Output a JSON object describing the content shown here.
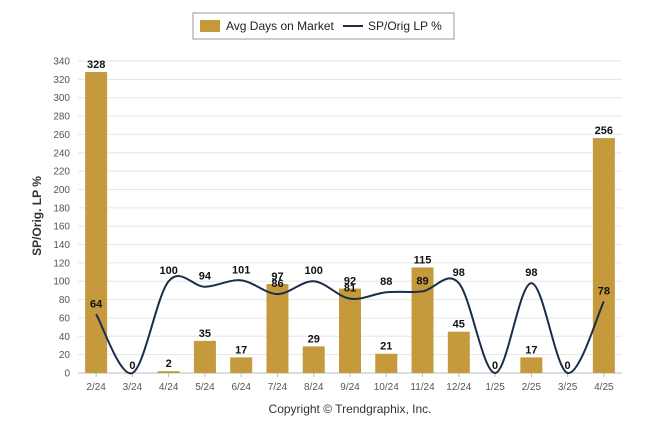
{
  "chart_data": {
    "type": "bar",
    "categories": [
      "2/24",
      "3/24",
      "4/24",
      "5/24",
      "6/24",
      "7/24",
      "8/24",
      "9/24",
      "10/24",
      "11/24",
      "12/24",
      "1/25",
      "2/25",
      "3/25",
      "4/25"
    ],
    "series": [
      {
        "name": "Avg Days on Market",
        "type": "bar",
        "values": [
          328,
          0,
          2,
          35,
          17,
          97,
          29,
          92,
          21,
          115,
          45,
          0,
          17,
          0,
          256
        ],
        "color": "#c49a3c"
      },
      {
        "name": "SP/Orig LP %",
        "type": "line",
        "values": [
          64,
          0,
          100,
          94,
          101,
          86,
          100,
          81,
          88,
          89,
          98,
          0,
          98,
          0,
          78
        ],
        "color": "#1a2e4a"
      }
    ],
    "ylabel": "SP/Orig. LP %",
    "ylim": [
      0,
      340
    ],
    "yticks": [
      0,
      20,
      40,
      60,
      80,
      100,
      120,
      140,
      160,
      180,
      200,
      220,
      240,
      260,
      280,
      300,
      320,
      340
    ],
    "grid": true,
    "legend": "top-center"
  },
  "footer": {
    "credit": "Copyright © Trendgraphix, Inc."
  }
}
